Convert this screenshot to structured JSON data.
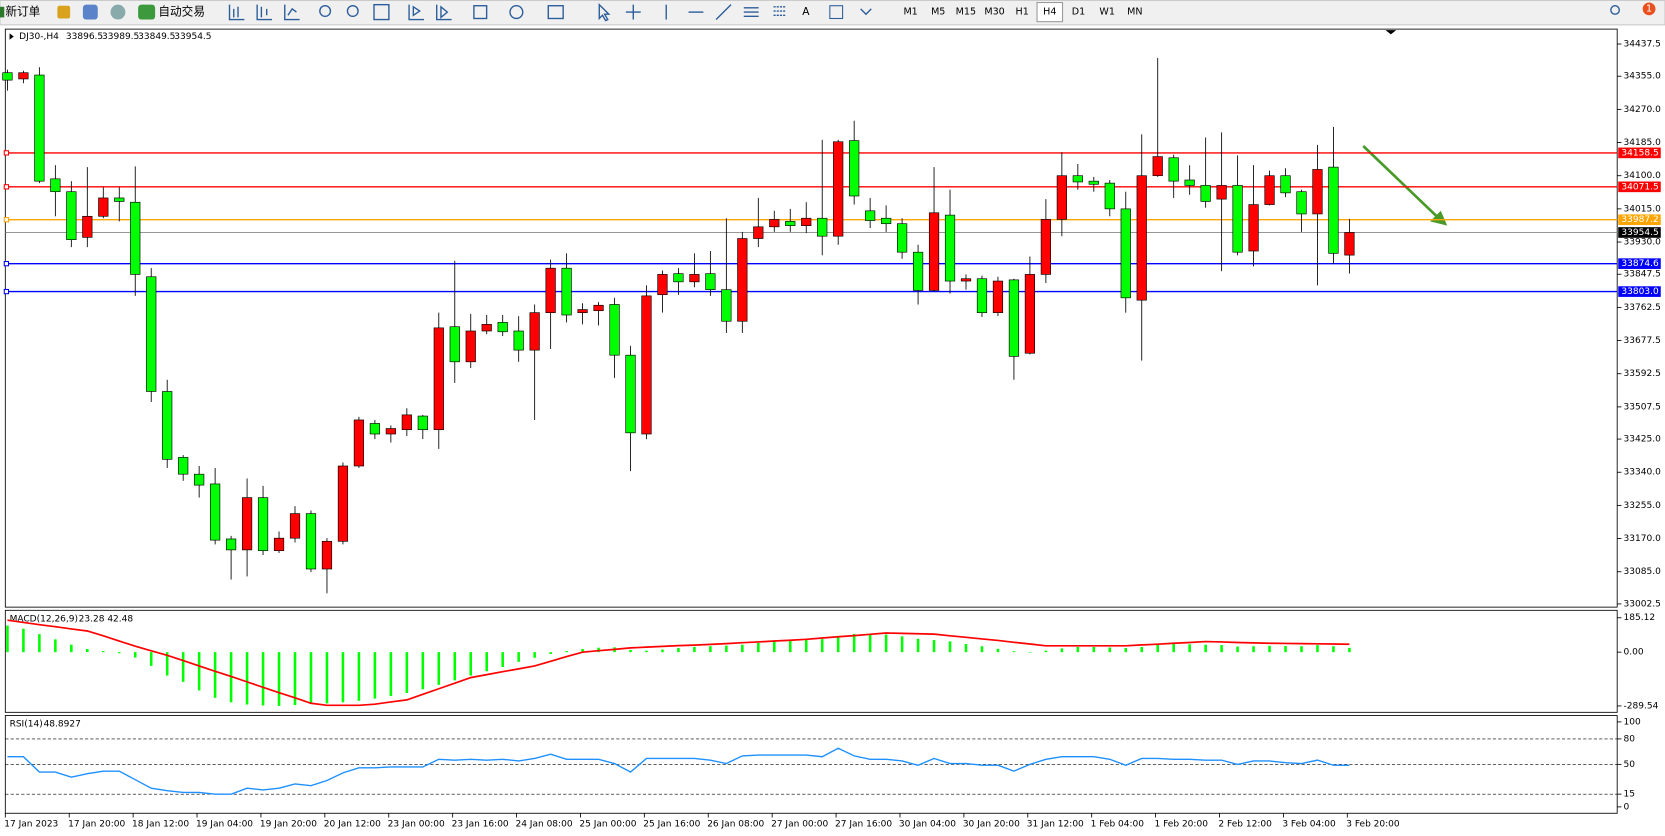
{
  "toolbar": {
    "new_order": "新订单",
    "auto_trading": "自动交易",
    "timeframes": [
      "M1",
      "M5",
      "M15",
      "M30",
      "H1",
      "H4",
      "D1",
      "W1",
      "MN"
    ],
    "notifications": 1
  },
  "chart_data": [
    {
      "type": "candlestick",
      "title": "DJ30-,H4",
      "categories": [
        "17 Jan 2023",
        null,
        null,
        null,
        "17 Jan 20:00",
        null,
        null,
        null,
        "18 Jan 12:00",
        null,
        null,
        null,
        "19 Jan 04:00",
        null,
        null,
        null,
        "19 Jan 20:00",
        null,
        null,
        null,
        "20 Jan 12:00",
        null,
        null,
        null,
        "23 Jan 00:00",
        null,
        null,
        null,
        "23 Jan 16:00",
        null,
        null,
        null,
        "24 Jan 08:00",
        null,
        null,
        null,
        "25 Jan 00:00",
        null,
        null,
        null,
        "25 Jan 16:00",
        null,
        null,
        null,
        "26 Jan 08:00",
        null,
        null,
        null,
        "27 Jan 00:00",
        null,
        null,
        null,
        "27 Jan 16:00",
        null,
        null,
        null,
        "30 Jan 04:00",
        null,
        null,
        null,
        "30 Jan 20:00",
        null,
        null,
        null,
        "31 Jan 12:00",
        null,
        null,
        null,
        "1 Feb 04:00",
        null,
        null,
        null,
        "1 Feb 20:00",
        null,
        null,
        null,
        "2 Feb 12:00",
        null,
        null,
        null,
        "3 Feb 04:00",
        null,
        null,
        null,
        "3 Feb 20:00"
      ],
      "open": [
        34364,
        34348,
        34358,
        34092,
        34059,
        33942,
        33996,
        34043,
        34032,
        33841,
        33547,
        33378,
        33335,
        33310,
        33169,
        33141,
        33275,
        33139,
        33171,
        33234,
        33092,
        33163,
        33356,
        33465,
        33438,
        33449,
        33484,
        33449,
        33713,
        33623,
        33702,
        33724,
        33702,
        33653,
        33749,
        33863,
        33749,
        33754,
        33770,
        33640,
        33438,
        33795,
        33849,
        33828,
        33849,
        33808,
        33727,
        33939,
        33969,
        33983,
        33972,
        33991,
        33945,
        34190,
        34010,
        33991,
        33977,
        33904,
        33806,
        33999,
        33830,
        33836,
        33749,
        33833,
        33645,
        33847,
        33988,
        34100,
        34086,
        34081,
        34015,
        33781,
        34100,
        34146,
        34089,
        34075,
        34040,
        34075,
        33907,
        34026,
        34100,
        34059,
        34002,
        34122,
        33896.5
      ],
      "high": [
        34372,
        34369,
        34378,
        34127,
        34086,
        34122,
        34070,
        34070,
        34124,
        33863,
        33577,
        33384,
        33356,
        33351,
        33177,
        33324,
        33305,
        33188,
        33253,
        33242,
        33171,
        33365,
        33482,
        33474,
        33460,
        33504,
        33487,
        33749,
        33882,
        33746,
        33743,
        33743,
        33740,
        33770,
        33885,
        33901,
        33773,
        33776,
        33787,
        33664,
        33819,
        33857,
        33863,
        33901,
        33907,
        33991,
        33956,
        34043,
        34010,
        34015,
        34032,
        34192,
        34192,
        34241,
        34043,
        34024,
        33991,
        33923,
        34122,
        34064,
        33847,
        33844,
        33841,
        33836,
        33893,
        34040,
        34160,
        34130,
        34097,
        34089,
        34059,
        34206,
        34402,
        34154,
        34127,
        34198,
        34211,
        34152,
        34127,
        34113,
        34119,
        34064,
        34179,
        34225,
        33989.5
      ],
      "low": [
        34318,
        34337,
        34081,
        33996,
        33917,
        33917,
        33991,
        33983,
        33792,
        33520,
        33351,
        33318,
        33275,
        33155,
        33065,
        33073,
        33128,
        33133,
        33160,
        33084,
        33030,
        33155,
        33351,
        33425,
        33416,
        33433,
        33425,
        33400,
        33569,
        33607,
        33694,
        33689,
        33623,
        33474,
        33656,
        33724,
        33719,
        33716,
        33582,
        33343,
        33425,
        33749,
        33795,
        33814,
        33792,
        33697,
        33697,
        33917,
        33956,
        33956,
        33953,
        33896,
        33923,
        34026,
        33966,
        33956,
        33887,
        33770,
        33803,
        33798,
        33808,
        33738,
        33740,
        33577,
        33642,
        33825,
        33945,
        34064,
        34059,
        33996,
        33749,
        33626,
        34097,
        34043,
        34051,
        34018,
        33855,
        33896,
        33868,
        34024,
        34045,
        33956,
        33819,
        33874,
        33849.5
      ],
      "close": [
        34345,
        34364,
        34086,
        34059,
        33936,
        33996,
        34043,
        34034,
        33847,
        33547,
        33373,
        33335,
        33307,
        33166,
        33141,
        33275,
        33139,
        33171,
        33234,
        33092,
        33163,
        33356,
        33474,
        33438,
        33452,
        33487,
        33449,
        33710,
        33623,
        33702,
        33719,
        33700,
        33653,
        33749,
        33863,
        33743,
        33757,
        33768,
        33640,
        33441,
        33792,
        33847,
        33828,
        33847,
        33808,
        33727,
        33939,
        33969,
        33988,
        33972,
        33991,
        33945,
        34187,
        34048,
        33985,
        33977,
        33904,
        33806,
        34005,
        33830,
        33836,
        33749,
        33830,
        33637,
        33847,
        33988,
        34100,
        34084,
        34078,
        34015,
        33787,
        34100,
        34149,
        34086,
        34075,
        34034,
        34075,
        33904,
        34026,
        34100,
        34056,
        34002,
        34116,
        33901,
        33954.5
      ],
      "up_color": "#ff0000",
      "down_color": "#00ff00",
      "ylim": [
        32997,
        34473
      ],
      "yticks": [
        34437.5,
        {
          "value": 34355,
          "label": "34355.0"
        },
        {
          "value": 34270,
          "label": "34270.0"
        },
        {
          "value": 34185,
          "label": "34185.0"
        },
        {
          "value": 34100,
          "label": "34100.0"
        },
        {
          "value": 34015,
          "label": "34015.0"
        },
        {
          "value": 33930,
          "label": "33930.0"
        },
        33847.5,
        33762.5,
        33677.5,
        33592.5,
        33507.5,
        {
          "value": 33425,
          "label": "33425.0"
        },
        {
          "value": 33340,
          "label": "33340.0"
        },
        {
          "value": 33255,
          "label": "33255.0"
        },
        {
          "value": 33170,
          "label": "33170.0"
        },
        {
          "value": 33085,
          "label": "33085.0"
        },
        33002.5
      ],
      "hlines": [
        {
          "value": 34158.5,
          "color": "#ff0000"
        },
        {
          "value": 34071.5,
          "color": "#ff0000"
        },
        {
          "value": 33987.2,
          "color": "#ffa500"
        },
        {
          "value": 33874.6,
          "color": "#0000ff"
        },
        {
          "value": 33803,
          "label": "33803.0",
          "color": "#0000ff"
        }
      ]
    },
    {
      "type": "macd",
      "title": "MACD(12,26,9)",
      "values": [
        143,
        126,
        97,
        69,
        40,
        17,
        6,
        -6,
        -29,
        -74,
        -126,
        -160,
        -206,
        -246,
        -270,
        -282,
        -287,
        -289.54,
        -285,
        -278,
        -276,
        -270,
        -262,
        -250,
        -236,
        -220,
        -200,
        -176,
        -152,
        -126,
        -103,
        -80,
        -52,
        -30,
        -10,
        6,
        17,
        24,
        26,
        12,
        8,
        14,
        22,
        28,
        32,
        35,
        40,
        50,
        58,
        62,
        66,
        70,
        86,
        98,
        98,
        95,
        85,
        72,
        65,
        58,
        44,
        32,
        18,
        5,
        -3,
        8,
        20,
        28,
        28,
        25,
        22,
        28,
        40,
        45,
        42,
        40,
        38,
        30,
        32,
        34,
        33,
        32,
        38,
        32,
        23.28
      ],
      "signal": [
        172,
        160,
        148,
        137,
        125,
        114,
        88,
        60,
        32,
        7,
        -17,
        -45,
        -74,
        -103,
        -131,
        -160,
        -189,
        -218,
        -246,
        -275,
        -286,
        -286,
        -286,
        -280,
        -268,
        -257,
        -227,
        -197,
        -167,
        -137,
        -121,
        -105,
        -90,
        -74,
        -49,
        -24,
        0,
        8,
        15,
        23,
        27,
        31,
        35,
        38,
        42,
        46,
        51,
        55,
        60,
        64,
        69,
        76,
        83,
        89,
        96,
        103,
        101,
        99,
        97,
        88,
        80,
        71,
        63,
        53,
        44,
        34,
        34,
        34,
        34,
        34,
        34,
        39,
        43,
        48,
        52,
        57,
        55,
        52,
        50,
        48,
        47,
        46,
        45,
        44,
        42.48
      ],
      "color": "#00ff00",
      "signal_color": "#ff0000",
      "ylim": [
        -289.54,
        185.12
      ],
      "yticks": [
        185.12,
        {
          "value": 0,
          "label": "0.00"
        },
        -289.54
      ]
    },
    {
      "type": "line",
      "title": "RSI(14)",
      "values": [
        59,
        59,
        41,
        41,
        35,
        39,
        42,
        42,
        32,
        22,
        19,
        17,
        17,
        15,
        15,
        22,
        20,
        22,
        27,
        25,
        31,
        40,
        46,
        46,
        47,
        47,
        47,
        56,
        55,
        56,
        55,
        56,
        54,
        57,
        62,
        56,
        56,
        56,
        51,
        41,
        57,
        57,
        57,
        57,
        55,
        51,
        60,
        61,
        61,
        61,
        61,
        59,
        69,
        60,
        56,
        56,
        54,
        49,
        57,
        51,
        51,
        49,
        49,
        42,
        50,
        56,
        59,
        59,
        59,
        56,
        49,
        57,
        57,
        56,
        56,
        55,
        55,
        50,
        54,
        54,
        52,
        51,
        55,
        49,
        48.8927
      ],
      "color": "#1e90ff",
      "ylim": [
        0,
        100
      ],
      "yticks": [
        100,
        80,
        50,
        15,
        0
      ]
    }
  ]
}
